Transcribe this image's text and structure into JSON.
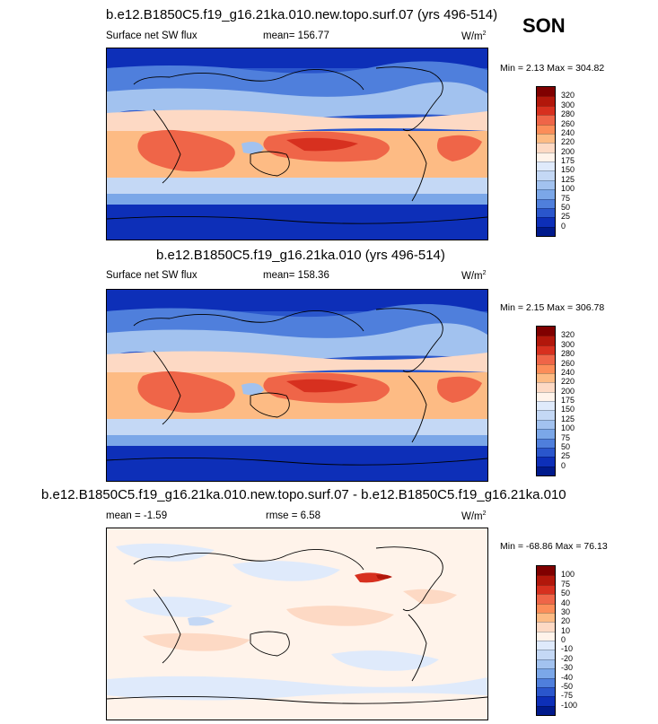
{
  "season": "SON",
  "chart_data": [
    {
      "type": "heatmap",
      "title": "b.e12.B1850C5.f19_g16.21ka.010.new.topo.surf.07 (yrs 496-514)",
      "variable": "Surface net SW flux",
      "mean_text": "mean= 156.77",
      "units_text": "W/m",
      "units_power": "2",
      "min_label": "Min = ",
      "min_value": "2.13",
      "max_label": "Max = ",
      "max_value": "304.82",
      "colorbar_levels": [
        "320",
        "300",
        "280",
        "260",
        "240",
        "220",
        "200",
        "175",
        "150",
        "125",
        "100",
        "75",
        "50",
        "25",
        "0"
      ],
      "colorbar_colors": [
        "#800000",
        "#b2170b",
        "#d7301f",
        "#ef6548",
        "#fc8d59",
        "#fdbb84",
        "#fdd9c4",
        "#fff3ea",
        "#dfeafb",
        "#c4d8f5",
        "#a2c2ef",
        "#7ba7e8",
        "#4f7fdc",
        "#2a56cc",
        "#0d2fb8",
        "#001a8c"
      ]
    },
    {
      "type": "heatmap",
      "title": "b.e12.B1850C5.f19_g16.21ka.010 (yrs 496-514)",
      "variable": "Surface net SW flux",
      "mean_text": "mean= 158.36",
      "units_text": "W/m",
      "units_power": "2",
      "min_label": "Min = ",
      "min_value": "2.15",
      "max_label": "Max = ",
      "max_value": "306.78",
      "colorbar_levels": [
        "320",
        "300",
        "280",
        "260",
        "240",
        "220",
        "200",
        "175",
        "150",
        "125",
        "100",
        "75",
        "50",
        "25",
        "0"
      ],
      "colorbar_colors": [
        "#800000",
        "#b2170b",
        "#d7301f",
        "#ef6548",
        "#fc8d59",
        "#fdbb84",
        "#fdd9c4",
        "#fff3ea",
        "#dfeafb",
        "#c4d8f5",
        "#a2c2ef",
        "#7ba7e8",
        "#4f7fdc",
        "#2a56cc",
        "#0d2fb8",
        "#001a8c"
      ]
    },
    {
      "type": "heatmap",
      "title": "b.e12.B1850C5.f19_g16.21ka.010.new.topo.surf.07 - b.e12.B1850C5.f19_g16.21ka.010",
      "mean_text": "mean =  -1.59",
      "rmse_text": "rmse =   6.58",
      "units_text": "W/m",
      "units_power": "2",
      "min_label": "Min = ",
      "min_value": "-68.86",
      "max_label": "Max = ",
      "max_value": "76.13",
      "colorbar_levels": [
        "100",
        "75",
        "50",
        "40",
        "30",
        "20",
        "10",
        "0",
        "-10",
        "-20",
        "-30",
        "-40",
        "-50",
        "-75",
        "-100"
      ],
      "colorbar_colors": [
        "#800000",
        "#b2170b",
        "#d7301f",
        "#ef6548",
        "#fc8d59",
        "#fdbb84",
        "#fdd9c4",
        "#fff3ea",
        "#dfeafb",
        "#c4d8f5",
        "#a2c2ef",
        "#7ba7e8",
        "#4f7fdc",
        "#2a56cc",
        "#0d2fb8",
        "#001a8c"
      ]
    }
  ]
}
